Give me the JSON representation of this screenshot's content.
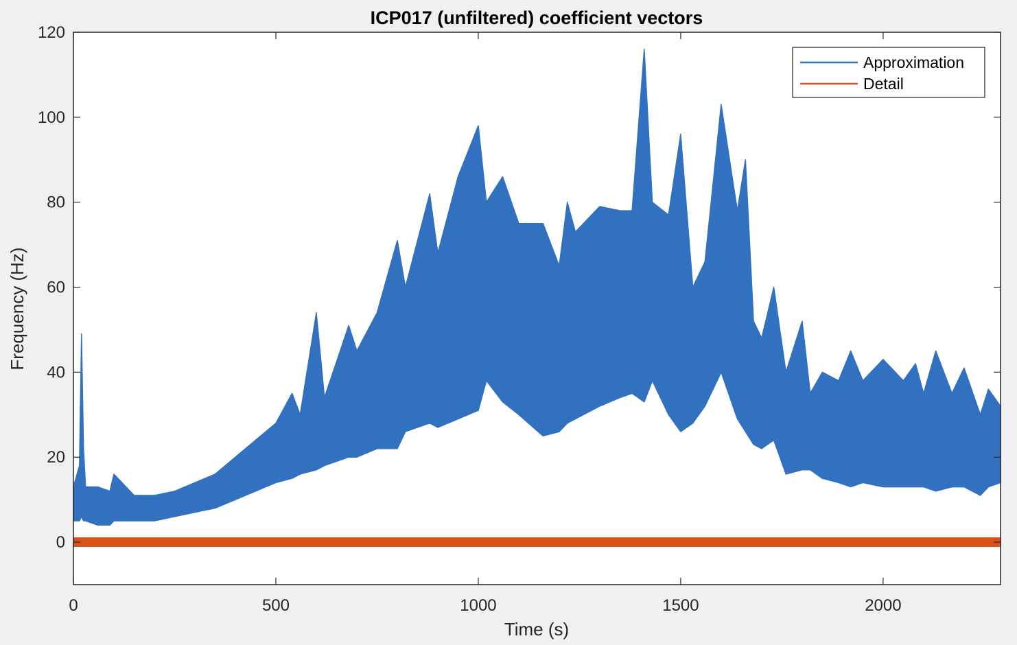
{
  "chart_data": {
    "type": "line",
    "title": "ICP017 (unfiltered) coefficient vectors",
    "xlabel": "Time (s)",
    "ylabel": "Frequency (Hz)",
    "xlim": [
      0,
      2290
    ],
    "ylim": [
      -10,
      120
    ],
    "xticks": [
      0,
      500,
      1000,
      1500,
      2000
    ],
    "yticks": [
      0,
      20,
      40,
      60,
      80,
      100,
      120
    ],
    "grid": false,
    "legend_position": "top-right",
    "series": [
      {
        "name": "Approximation",
        "color": "#3171bf",
        "x": [
          0,
          15,
          20,
          25,
          30,
          60,
          90,
          100,
          150,
          200,
          250,
          300,
          350,
          400,
          450,
          500,
          540,
          560,
          600,
          620,
          680,
          700,
          750,
          800,
          820,
          880,
          900,
          950,
          1000,
          1020,
          1060,
          1100,
          1160,
          1200,
          1220,
          1240,
          1300,
          1350,
          1380,
          1410,
          1430,
          1470,
          1500,
          1530,
          1560,
          1600,
          1640,
          1660,
          1680,
          1700,
          1730,
          1760,
          1800,
          1820,
          1850,
          1890,
          1920,
          1950,
          2000,
          2050,
          2080,
          2100,
          2130,
          2170,
          2200,
          2240,
          2260,
          2290
        ],
        "min": [
          5,
          5,
          6,
          5,
          5,
          4,
          4,
          5,
          5,
          5,
          6,
          7,
          8,
          10,
          12,
          14,
          15,
          16,
          17,
          18,
          20,
          20,
          22,
          22,
          26,
          28,
          27,
          29,
          31,
          38,
          33,
          30,
          25,
          26,
          28,
          29,
          32,
          34,
          35,
          33,
          38,
          30,
          26,
          28,
          32,
          40,
          29,
          26,
          23,
          22,
          24,
          16,
          17,
          17,
          15,
          14,
          13,
          14,
          13,
          13,
          13,
          13,
          12,
          13,
          13,
          11,
          13,
          14
        ],
        "max": [
          13,
          18,
          49,
          22,
          13,
          13,
          12,
          16,
          11,
          11,
          12,
          14,
          16,
          20,
          24,
          28,
          35,
          30,
          54,
          34,
          51,
          45,
          54,
          71,
          60,
          82,
          68,
          86,
          98,
          80,
          86,
          75,
          75,
          65,
          80,
          73,
          79,
          78,
          78,
          116,
          80,
          77,
          96,
          60,
          66,
          103,
          78,
          90,
          52,
          48,
          60,
          40,
          52,
          35,
          40,
          38,
          45,
          38,
          43,
          38,
          42,
          35,
          45,
          35,
          41,
          30,
          36,
          32
        ]
      },
      {
        "name": "Detail",
        "color": "#d95319",
        "x": [
          0,
          2290
        ],
        "min": [
          -1,
          -1
        ],
        "max": [
          1,
          1
        ]
      }
    ]
  }
}
